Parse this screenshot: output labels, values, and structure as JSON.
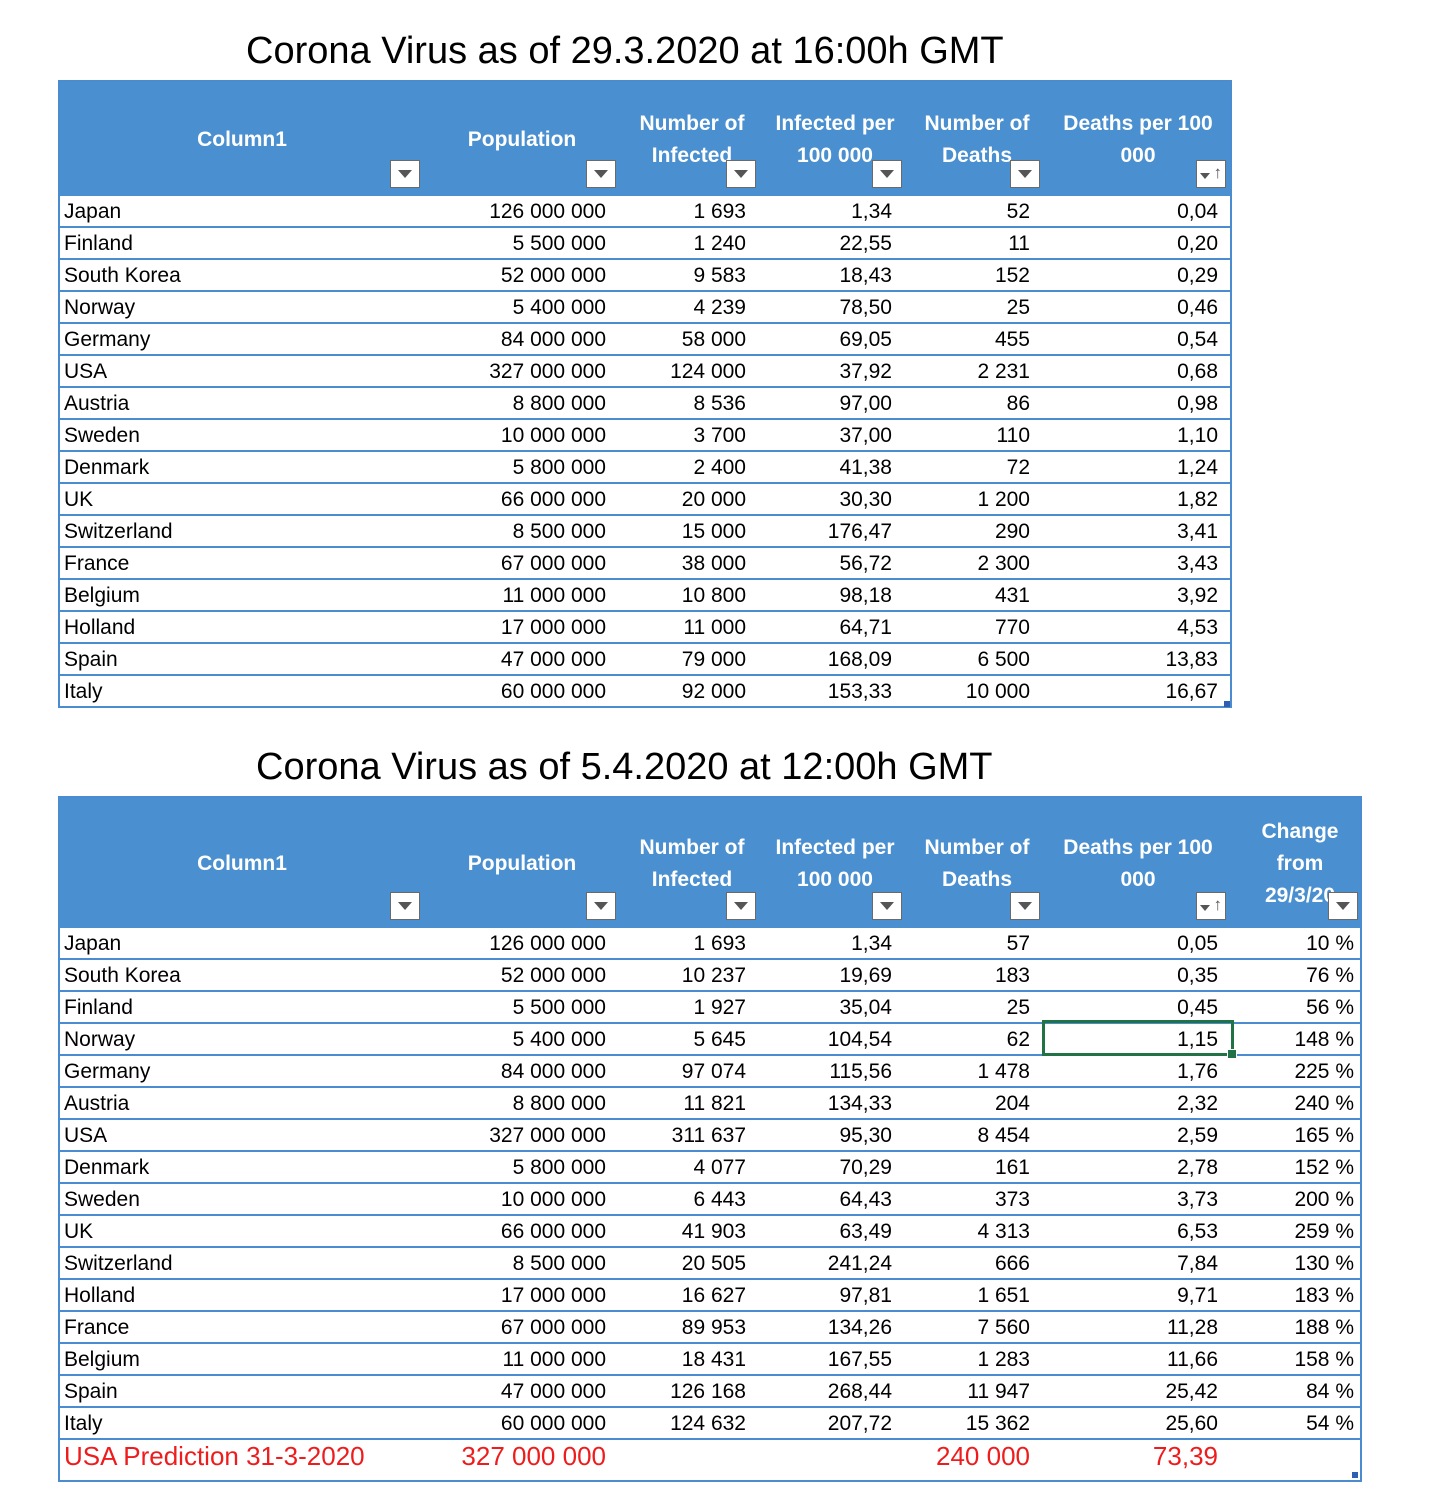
{
  "table1": {
    "title": "Corona Virus as of 29.3.2020 at 16:00h GMT",
    "headers": [
      {
        "line1": "Column1",
        "line2": ""
      },
      {
        "line1": "Population",
        "line2": ""
      },
      {
        "line1": "Number of",
        "line2": "Infected"
      },
      {
        "line1": "Infected per",
        "line2": "100 000"
      },
      {
        "line1": "Number of",
        "line2": "Deaths"
      },
      {
        "line1": "Deaths per 100",
        "line2": "000"
      }
    ],
    "filter_icons": [
      "dropdown-filter-icon",
      "dropdown-filter-icon",
      "dropdown-filter-icon",
      "dropdown-filter-icon",
      "dropdown-filter-icon",
      "sort-ascending-filter-icon"
    ],
    "rows": [
      [
        "Japan",
        "126 000 000",
        "1 693",
        "1,34",
        "52",
        "0,04"
      ],
      [
        "Finland",
        "5 500 000",
        "1 240",
        "22,55",
        "11",
        "0,20"
      ],
      [
        "South Korea",
        "52 000 000",
        "9 583",
        "18,43",
        "152",
        "0,29"
      ],
      [
        "Norway",
        "5 400 000",
        "4 239",
        "78,50",
        "25",
        "0,46"
      ],
      [
        "Germany",
        "84 000 000",
        "58 000",
        "69,05",
        "455",
        "0,54"
      ],
      [
        "USA",
        "327 000 000",
        "124 000",
        "37,92",
        "2 231",
        "0,68"
      ],
      [
        "Austria",
        "8 800 000",
        "8 536",
        "97,00",
        "86",
        "0,98"
      ],
      [
        "Sweden",
        "10 000 000",
        "3 700",
        "37,00",
        "110",
        "1,10"
      ],
      [
        "Denmark",
        "5 800 000",
        "2 400",
        "41,38",
        "72",
        "1,24"
      ],
      [
        "UK",
        "66 000 000",
        "20 000",
        "30,30",
        "1 200",
        "1,82"
      ],
      [
        "Switzerland",
        "8 500 000",
        "15 000",
        "176,47",
        "290",
        "3,41"
      ],
      [
        "France",
        "67 000 000",
        "38 000",
        "56,72",
        "2 300",
        "3,43"
      ],
      [
        "Belgium",
        "11 000 000",
        "10 800",
        "98,18",
        "431",
        "3,92"
      ],
      [
        "Holland",
        "17 000 000",
        "11 000",
        "64,71",
        "770",
        "4,53"
      ],
      [
        "Spain",
        "47 000 000",
        "79 000",
        "168,09",
        "6 500",
        "13,83"
      ],
      [
        "Italy",
        "60 000 000",
        "92 000",
        "153,33",
        "10 000",
        "16,67"
      ]
    ]
  },
  "table2": {
    "title": "Corona Virus as of 5.4.2020 at 12:00h GMT",
    "headers": [
      {
        "line1": "Column1",
        "line2": ""
      },
      {
        "line1": "Population",
        "line2": ""
      },
      {
        "line1": "Number of",
        "line2": "Infected"
      },
      {
        "line1": "Infected per",
        "line2": "100 000"
      },
      {
        "line1": "Number of",
        "line2": "Deaths"
      },
      {
        "line1": "Deaths per 100",
        "line2": "000"
      },
      {
        "line1": "Change",
        "line2": "from",
        "line3": "29/3/20"
      }
    ],
    "filter_icons": [
      "dropdown-filter-icon",
      "dropdown-filter-icon",
      "dropdown-filter-icon",
      "dropdown-filter-icon",
      "dropdown-filter-icon",
      "sort-ascending-filter-icon",
      "dropdown-filter-icon"
    ],
    "rows": [
      [
        "Japan",
        "126 000 000",
        "1 693",
        "1,34",
        "57",
        "0,05",
        "10 %"
      ],
      [
        "South Korea",
        "52 000 000",
        "10 237",
        "19,69",
        "183",
        "0,35",
        "76 %"
      ],
      [
        "Finland",
        "5 500 000",
        "1 927",
        "35,04",
        "25",
        "0,45",
        "56 %"
      ],
      [
        "Norway",
        "5 400 000",
        "5 645",
        "104,54",
        "62",
        "1,15",
        "148 %"
      ],
      [
        "Germany",
        "84 000 000",
        "97 074",
        "115,56",
        "1 478",
        "1,76",
        "225 %"
      ],
      [
        "Austria",
        "8 800 000",
        "11 821",
        "134,33",
        "204",
        "2,32",
        "240 %"
      ],
      [
        "USA",
        "327 000 000",
        "311 637",
        "95,30",
        "8 454",
        "2,59",
        "165 %"
      ],
      [
        "Denmark",
        "5 800 000",
        "4 077",
        "70,29",
        "161",
        "2,78",
        "152 %"
      ],
      [
        "Sweden",
        "10 000 000",
        "6 443",
        "64,43",
        "373",
        "3,73",
        "200 %"
      ],
      [
        "UK",
        "66 000 000",
        "41 903",
        "63,49",
        "4 313",
        "6,53",
        "259 %"
      ],
      [
        "Switzerland",
        "8 500 000",
        "20 505",
        "241,24",
        "666",
        "7,84",
        "130 %"
      ],
      [
        "Holland",
        "17 000 000",
        "16 627",
        "97,81",
        "1 651",
        "9,71",
        "183 %"
      ],
      [
        "France",
        "67 000 000",
        "89 953",
        "134,26",
        "7 560",
        "11,28",
        "188 %"
      ],
      [
        "Belgium",
        "11 000 000",
        "18 431",
        "167,55",
        "1 283",
        "11,66",
        "158 %"
      ],
      [
        "Spain",
        "47 000 000",
        "126 168",
        "268,44",
        "11 947",
        "25,42",
        "84 %"
      ],
      [
        "Italy",
        "60 000 000",
        "124 632",
        "207,72",
        "15 362",
        "25,60",
        "54 %"
      ]
    ],
    "prediction": {
      "label": "USA Prediction 31-3-2020",
      "population": "327 000 000",
      "deaths": "240 000",
      "deaths_per_100k": "73,39",
      "color": "#ee1c1c"
    }
  },
  "colors": {
    "header_bg": "#4a8fd0",
    "row_border": "#4a8ccf",
    "selection": "#217346"
  }
}
